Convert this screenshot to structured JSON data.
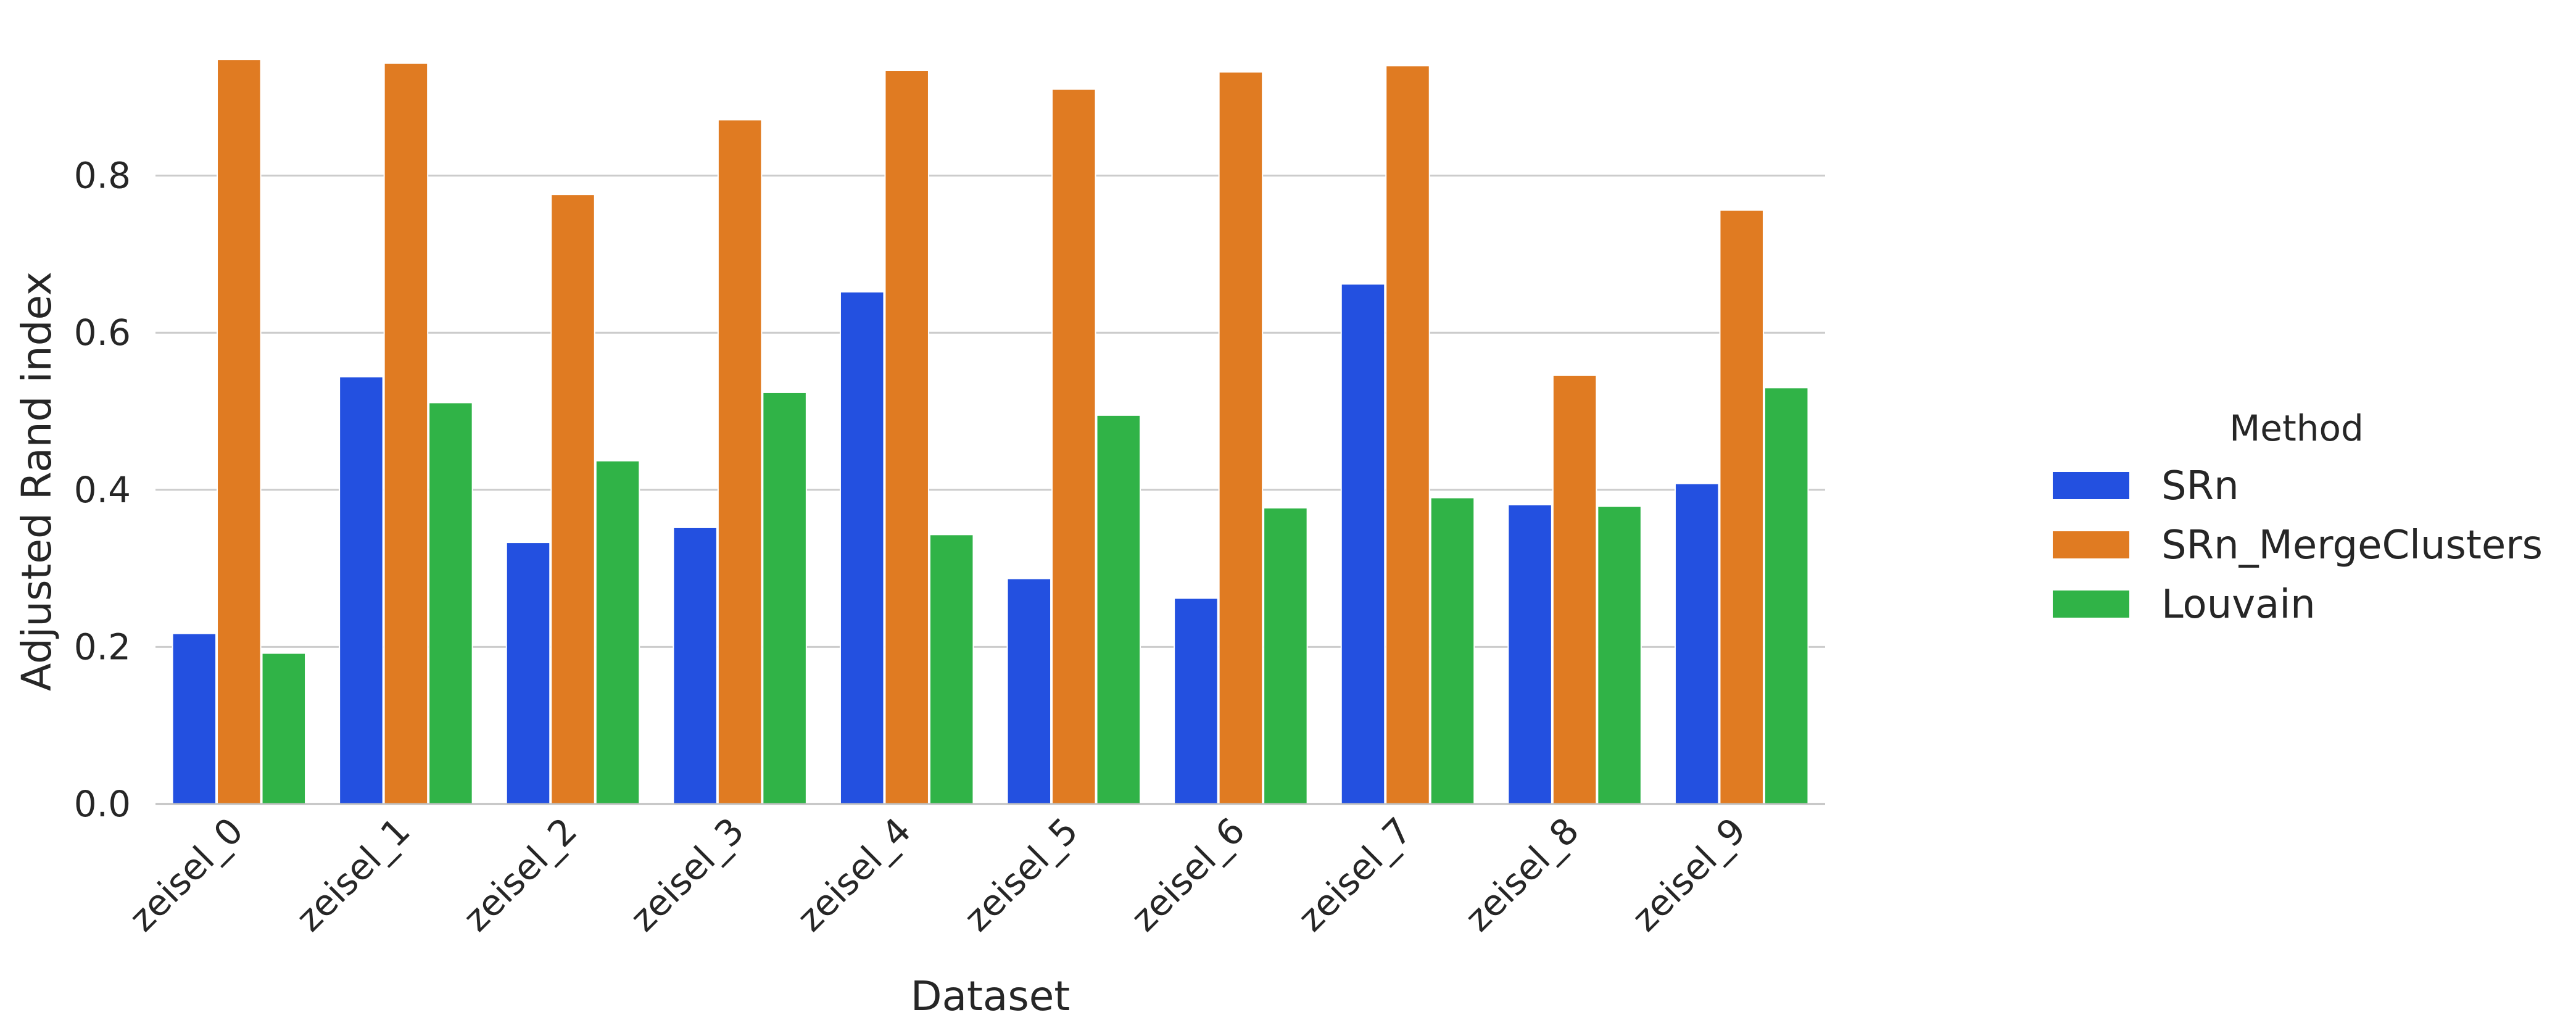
{
  "chart_data": {
    "type": "bar",
    "categories": [
      "zeisel_0",
      "zeisel_1",
      "zeisel_2",
      "zeisel_3",
      "zeisel_4",
      "zeisel_5",
      "zeisel_6",
      "zeisel_7",
      "zeisel_8",
      "zeisel_9"
    ],
    "series": [
      {
        "name": "SRn",
        "color": "#2350e0",
        "values": [
          0.217,
          0.544,
          0.333,
          0.352,
          0.652,
          0.287,
          0.262,
          0.662,
          0.381,
          0.408
        ]
      },
      {
        "name": "SRn_MergeClusters",
        "color": "#e07b22",
        "values": [
          0.948,
          0.943,
          0.776,
          0.871,
          0.934,
          0.91,
          0.932,
          0.94,
          0.546,
          0.756
        ]
      },
      {
        "name": "Louvain",
        "color": "#30b347",
        "values": [
          0.192,
          0.511,
          0.437,
          0.524,
          0.343,
          0.495,
          0.377,
          0.39,
          0.379,
          0.53
        ]
      }
    ],
    "xlabel": "Dataset",
    "ylabel": "Adjusted Rand index",
    "ylim": [
      0,
      1.0
    ],
    "yticks": [
      "0.0",
      "0.2",
      "0.4",
      "0.6",
      "0.8"
    ],
    "grid": "horizontal",
    "legend": {
      "title": "Method",
      "placement": "right"
    }
  }
}
